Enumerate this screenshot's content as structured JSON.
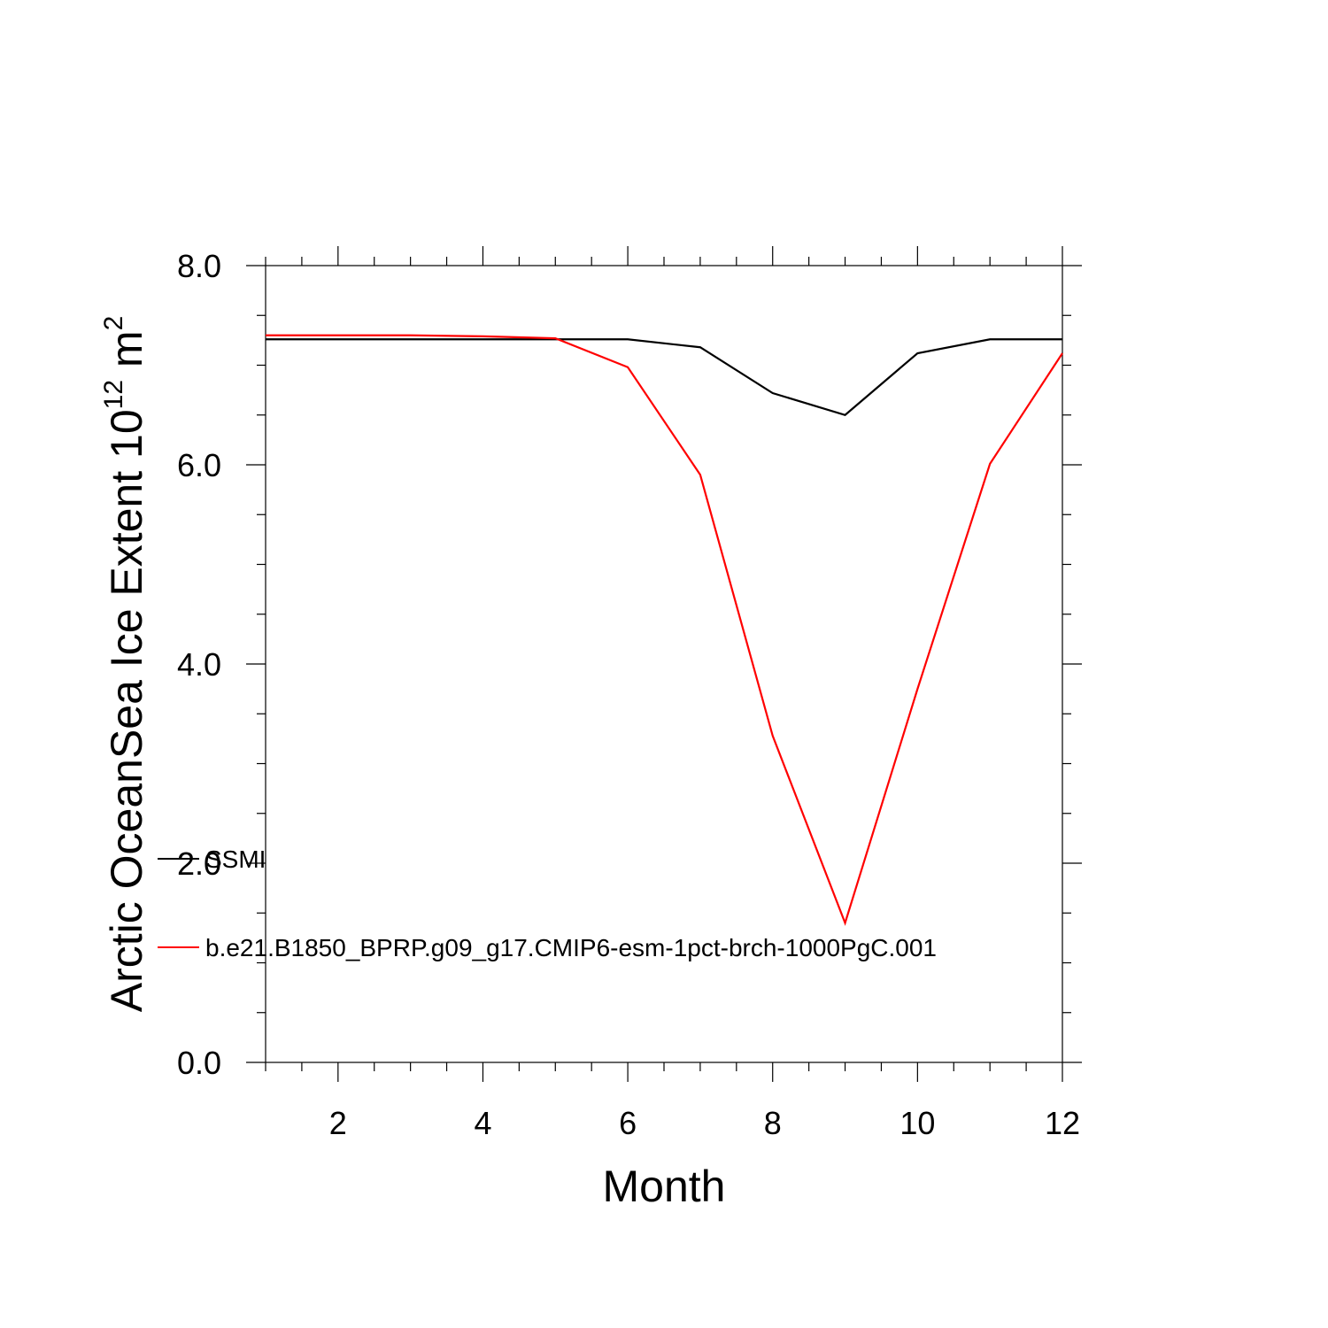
{
  "chart_data": {
    "type": "line",
    "title": "",
    "xlabel": "Month",
    "ylabel": "Arctic OceanSea Ice Extent 10",
    "ylabel_sup": "12",
    "ylabel_unit": " m",
    "ylabel_unit_sup": "2",
    "xlim": [
      1,
      12
    ],
    "ylim": [
      0,
      8
    ],
    "x_ticks": [
      2,
      4,
      6,
      8,
      10,
      12
    ],
    "x_tick_labels": [
      "2",
      "4",
      "6",
      "8",
      "10",
      "12"
    ],
    "y_ticks": [
      0,
      2,
      4,
      6,
      8
    ],
    "y_tick_labels": [
      "0.0",
      "2.0",
      "4.0",
      "6.0",
      "8.0"
    ],
    "grid": false,
    "legend_position": "lower-left",
    "x": [
      1,
      2,
      3,
      4,
      5,
      6,
      7,
      8,
      9,
      10,
      11,
      12
    ],
    "series": [
      {
        "name": "SSMI",
        "color": "#000000",
        "values": [
          7.26,
          7.26,
          7.26,
          7.26,
          7.26,
          7.26,
          7.18,
          6.72,
          6.5,
          7.12,
          7.26,
          7.26
        ]
      },
      {
        "name": "b.e21.B1850_BPRP.g09_g17.CMIP6-esm-1pct-brch-1000PgC.001",
        "color": "#ff0000",
        "values": [
          7.3,
          7.3,
          7.3,
          7.29,
          7.27,
          6.98,
          5.9,
          3.28,
          1.4,
          3.75,
          6.01,
          7.12
        ]
      }
    ]
  }
}
